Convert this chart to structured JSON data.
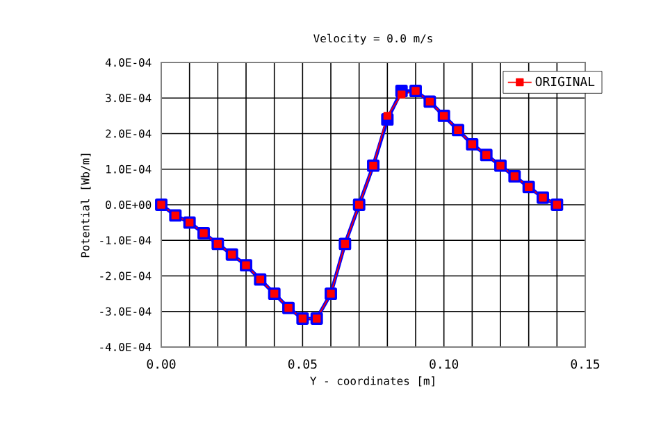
{
  "chart_data": {
    "type": "line",
    "title": "Velocity = 0.0 m/s",
    "xlabel": "Y - coordinates [m]",
    "ylabel": "Potential [Wb/m]",
    "x": [
      0,
      0.005,
      0.01,
      0.015,
      0.02,
      0.025,
      0.03,
      0.035,
      0.04,
      0.045,
      0.05,
      0.055,
      0.06,
      0.065,
      0.07,
      0.075,
      0.08,
      0.085,
      0.09,
      0.095,
      0.1,
      0.105,
      0.11,
      0.115,
      0.12,
      0.125,
      0.13,
      0.135,
      0.14
    ],
    "series": [
      {
        "color": "#0000ff",
        "values": [
          0,
          -3e-05,
          -5e-05,
          -8e-05,
          -0.00011,
          -0.00014,
          -0.00017,
          -0.00021,
          -0.00025,
          -0.00029,
          -0.00032,
          -0.00032,
          -0.00025,
          -0.00011,
          0,
          0.00011,
          0.00024,
          0.00032,
          0.00032,
          0.00029,
          0.00025,
          0.00021,
          0.00017,
          0.00014,
          0.00011,
          8e-05,
          5e-05,
          2e-05,
          0
        ]
      },
      {
        "name": "ORIGINAL",
        "color": "#ff0000",
        "values": [
          0,
          -3e-05,
          -5e-05,
          -8e-05,
          -0.00011,
          -0.00014,
          -0.00017,
          -0.00021,
          -0.00025,
          -0.00029,
          -0.00032,
          -0.00032,
          -0.00025,
          -0.00011,
          0,
          0.00011,
          0.00025,
          0.00031,
          0.00032,
          0.00029,
          0.00025,
          0.00021,
          0.00017,
          0.00014,
          0.00011,
          8e-05,
          5e-05,
          2e-05,
          0
        ]
      }
    ],
    "xlim": [
      0,
      0.15
    ],
    "xticks": [
      {
        "value": 0,
        "label": "0.00"
      },
      {
        "value": 0.01,
        "label": null
      },
      {
        "value": 0.02,
        "label": null
      },
      {
        "value": 0.03,
        "label": null
      },
      {
        "value": 0.04,
        "label": null
      },
      {
        "value": 0.05,
        "label": "0.05"
      },
      {
        "value": 0.06,
        "label": null
      },
      {
        "value": 0.07,
        "label": null
      },
      {
        "value": 0.08,
        "label": null
      },
      {
        "value": 0.09,
        "label": null
      },
      {
        "value": 0.1,
        "label": "0.10"
      },
      {
        "value": 0.11,
        "label": null
      },
      {
        "value": 0.12,
        "label": null
      },
      {
        "value": 0.13,
        "label": null
      },
      {
        "value": 0.14,
        "label": null
      },
      {
        "value": 0.15,
        "label": "0.15"
      }
    ],
    "ylim": [
      -0.0004,
      0.0004
    ],
    "yticks": [
      {
        "value": -0.0004,
        "label": "-4.0E-04"
      },
      {
        "value": -0.0003,
        "label": "-3.0E-04"
      },
      {
        "value": -0.0002,
        "label": "-2.0E-04"
      },
      {
        "value": -0.0001,
        "label": "-1.0E-04"
      },
      {
        "value": 0,
        "label": "0.0E+00"
      },
      {
        "value": 0.0001,
        "label": "1.0E-04"
      },
      {
        "value": 0.0002,
        "label": "2.0E-04"
      },
      {
        "value": 0.0003,
        "label": "3.0E-04"
      },
      {
        "value": 0.0004,
        "label": "4.0E-04"
      }
    ],
    "grid": true,
    "legend": "top right",
    "marker": "square",
    "line_style": "solid"
  }
}
